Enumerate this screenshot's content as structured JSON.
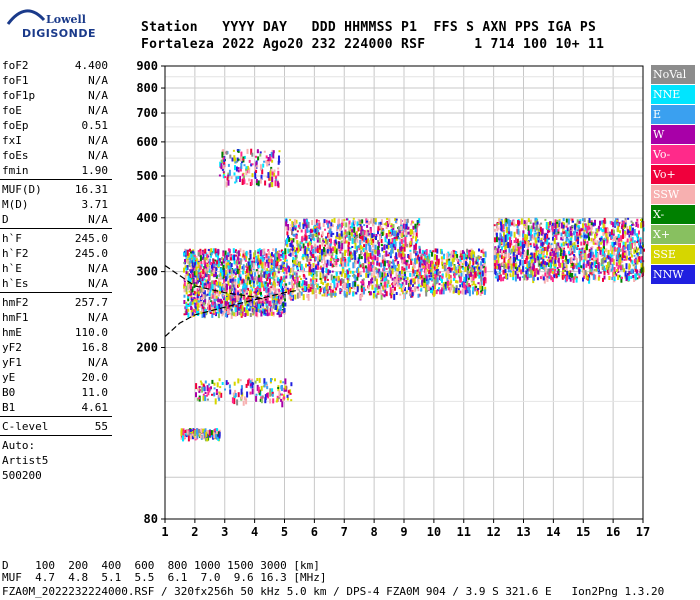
{
  "logo": {
    "line1": "Lowell",
    "line2": "DIGISONDE"
  },
  "header": {
    "row1": "Station   YYYY DAY   DDD HHMMSS P1  FFS S AXN PPS IGA PS",
    "row2": "Fortaleza 2022 Ago20 232 224000 RSF      1 714 100 10+ 11"
  },
  "params": {
    "group1": [
      {
        "k": "foF2",
        "v": "4.400"
      },
      {
        "k": "foF1",
        "v": "N/A"
      },
      {
        "k": "foF1p",
        "v": "N/A"
      },
      {
        "k": "foE",
        "v": "N/A"
      },
      {
        "k": "foEp",
        "v": "0.51"
      },
      {
        "k": "fxI",
        "v": "N/A"
      },
      {
        "k": "foEs",
        "v": "N/A"
      },
      {
        "k": "fmin",
        "v": "1.90"
      }
    ],
    "group2": [
      {
        "k": "MUF(D)",
        "v": "16.31"
      },
      {
        "k": "M(D)",
        "v": "3.71"
      },
      {
        "k": "D",
        "v": "N/A"
      }
    ],
    "group3": [
      {
        "k": "h`F",
        "v": "245.0"
      },
      {
        "k": "h`F2",
        "v": "245.0"
      },
      {
        "k": "h`E",
        "v": "N/A"
      },
      {
        "k": "h`Es",
        "v": "N/A"
      }
    ],
    "group4": [
      {
        "k": "hmF2",
        "v": "257.7"
      },
      {
        "k": "hmF1",
        "v": "N/A"
      },
      {
        "k": "hmE",
        "v": "110.0"
      },
      {
        "k": "yF2",
        "v": "16.8"
      },
      {
        "k": "yF1",
        "v": "N/A"
      },
      {
        "k": "yE",
        "v": "20.0"
      },
      {
        "k": "B0",
        "v": "11.0"
      },
      {
        "k": "B1",
        "v": "4.61"
      }
    ],
    "group5": [
      {
        "k": "C-level",
        "v": "55"
      }
    ],
    "auto": [
      "Auto:",
      "Artist5",
      "500200"
    ]
  },
  "legend": [
    {
      "label": "NoVal",
      "color": "#8c8c8c"
    },
    {
      "label": "NNE",
      "color": "#00e5ff"
    },
    {
      "label": "E",
      "color": "#3aa0f0"
    },
    {
      "label": "W",
      "color": "#a800a8"
    },
    {
      "label": "Vo-",
      "color": "#ff2a8a"
    },
    {
      "label": "Vo+",
      "color": "#f0003c"
    },
    {
      "label": "SSW",
      "color": "#f7b0b0"
    },
    {
      "label": "X-",
      "color": "#008000"
    },
    {
      "label": "X+",
      "color": "#88c060"
    },
    {
      "label": "SSE",
      "color": "#d6d600"
    },
    {
      "label": "NNW",
      "color": "#2020e0"
    }
  ],
  "footer": {
    "line1": "D    100  200  400  600  800 1000 1500 3000 [km]",
    "line2": "MUF  4.7  4.8  5.1  5.5  6.1  7.0  9.6 16.3 [MHz]",
    "line3": "FZA0M_2022232224000.RSF / 320fx256h 50 kHz 5.0 km / DPS-4 FZA0M 904 / 3.9 S 321.6 E   Ion2Png 1.3.20"
  },
  "chart_data": {
    "type": "scatter",
    "title": "",
    "xlabel": "",
    "ylabel": "",
    "xlim": [
      1,
      17
    ],
    "ylim": [
      80,
      900
    ],
    "x_ticks": [
      "1",
      "2",
      "3",
      "4",
      "5",
      "6",
      "7",
      "8",
      "9",
      "10",
      "11",
      "12",
      "13",
      "14",
      "15",
      "16",
      "17"
    ],
    "y_ticks": [
      "80",
      "200",
      "300",
      "400",
      "500",
      "600",
      "700",
      "800",
      "900"
    ],
    "y_scale": "log",
    "grid": true,
    "series": [
      {
        "name": "NoVal",
        "color": "#8c8c8c"
      },
      {
        "name": "NNE",
        "color": "#00e5ff"
      },
      {
        "name": "E",
        "color": "#3aa0f0"
      },
      {
        "name": "W",
        "color": "#a800a8"
      },
      {
        "name": "Vo-",
        "color": "#ff2a8a"
      },
      {
        "name": "Vo+",
        "color": "#f0003c"
      },
      {
        "name": "SSW",
        "color": "#f7b0b0"
      },
      {
        "name": "X-",
        "color": "#008000"
      },
      {
        "name": "X+",
        "color": "#88c060"
      },
      {
        "name": "SSE",
        "color": "#d6d600"
      },
      {
        "name": "NNW",
        "color": "#2020e0"
      }
    ],
    "echo_regions": [
      {
        "x": [
          1.6,
          5.0
        ],
        "y": [
          240,
          340
        ],
        "density": "high"
      },
      {
        "x": [
          5.0,
          9.5
        ],
        "y": [
          265,
          400
        ],
        "density": "high"
      },
      {
        "x": [
          9.5,
          11.7
        ],
        "y": [
          270,
          340
        ],
        "density": "medium"
      },
      {
        "x": [
          12.0,
          17.0
        ],
        "y": [
          290,
          400
        ],
        "density": "high"
      },
      {
        "x": [
          2.8,
          4.8
        ],
        "y": [
          480,
          580
        ],
        "density": "low"
      },
      {
        "x": [
          2.0,
          5.2
        ],
        "y": [
          150,
          170
        ],
        "density": "low"
      },
      {
        "x": [
          1.5,
          2.8
        ],
        "y": [
          125,
          130
        ],
        "density": "low"
      }
    ],
    "trace_curves": [
      {
        "name": "upper",
        "points": [
          [
            1.0,
            310
          ],
          [
            2.0,
            278
          ],
          [
            3.0,
            268
          ],
          [
            4.0,
            262
          ],
          [
            4.4,
            258
          ]
        ]
      },
      {
        "name": "lower",
        "points": [
          [
            1.0,
            212
          ],
          [
            1.5,
            228
          ],
          [
            2.0,
            238
          ],
          [
            3.0,
            248
          ],
          [
            4.0,
            258
          ],
          [
            5.0,
            268
          ],
          [
            5.5,
            272
          ]
        ]
      }
    ]
  }
}
